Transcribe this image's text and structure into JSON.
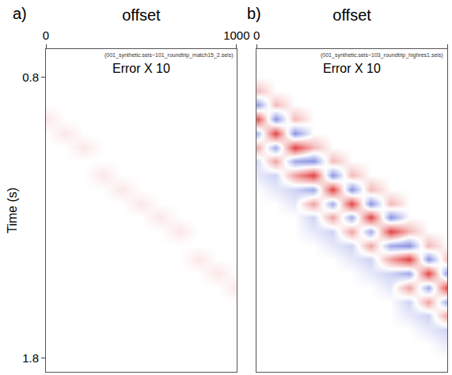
{
  "chart_data": [
    {
      "type": "heatmap",
      "label": "a)",
      "title": "Error X 10",
      "subtitle": "(001_synthetic.seis~101_roundtrip_match15_2.seis)",
      "x_label": "offset",
      "y_label": "Time (s)",
      "x": [
        0,
        100,
        200,
        300,
        400,
        500,
        600,
        700,
        800,
        900,
        1000
      ],
      "y": [
        0.8,
        0.85,
        0.9,
        0.95,
        1.0,
        1.05,
        1.1,
        1.15,
        1.2,
        1.25,
        1.3,
        1.35,
        1.4,
        1.45,
        1.5,
        1.55,
        1.6,
        1.65,
        1.7,
        1.75,
        1.8
      ],
      "cells": [
        [
          0,
          0,
          0,
          0,
          0,
          0,
          0,
          0,
          0,
          0,
          0
        ],
        [
          0,
          0,
          0,
          0,
          0,
          0,
          0,
          0,
          0,
          0,
          0
        ],
        [
          0,
          0,
          0,
          0,
          0,
          0,
          0,
          0,
          0,
          0,
          0
        ],
        [
          1,
          0,
          0,
          0,
          0,
          0,
          0,
          0,
          0,
          0,
          0
        ],
        [
          0,
          1,
          0,
          0,
          0,
          0,
          0,
          0,
          0,
          0,
          0
        ],
        [
          0,
          0,
          1,
          0,
          0,
          0,
          0,
          0,
          0,
          0,
          0
        ],
        [
          0,
          0,
          0,
          0,
          0,
          0,
          0,
          0,
          0,
          0,
          0
        ],
        [
          0,
          0,
          0,
          1,
          0,
          0,
          0,
          0,
          0,
          0,
          0
        ],
        [
          0,
          0,
          0,
          0,
          1,
          0,
          0,
          0,
          0,
          0,
          0
        ],
        [
          0,
          0,
          0,
          0,
          0,
          1,
          0,
          0,
          0,
          0,
          0
        ],
        [
          0,
          0,
          0,
          0,
          0,
          0,
          1,
          0,
          0,
          0,
          0
        ],
        [
          0,
          0,
          0,
          0,
          0,
          0,
          0,
          1,
          0,
          0,
          0
        ],
        [
          0,
          0,
          0,
          0,
          0,
          0,
          0,
          0,
          0,
          0,
          0
        ],
        [
          0,
          0,
          0,
          0,
          0,
          0,
          0,
          0,
          1,
          0,
          0
        ],
        [
          0,
          0,
          0,
          0,
          0,
          0,
          0,
          0,
          0,
          1,
          0
        ],
        [
          0,
          0,
          0,
          0,
          0,
          0,
          0,
          0,
          0,
          0,
          1
        ],
        [
          0,
          0,
          0,
          0,
          0,
          0,
          0,
          0,
          0,
          0,
          0
        ],
        [
          0,
          0,
          0,
          0,
          0,
          0,
          0,
          0,
          0,
          0,
          0
        ],
        [
          0,
          0,
          0,
          0,
          0,
          0,
          0,
          0,
          0,
          0,
          0
        ],
        [
          0,
          0,
          0,
          0,
          0,
          0,
          0,
          0,
          0,
          0,
          0
        ],
        [
          0,
          0,
          0,
          0,
          0,
          0,
          0,
          0,
          0,
          0,
          0
        ]
      ],
      "zlim": [
        -10,
        10
      ],
      "xlim": [
        0,
        1000
      ],
      "xticks": [
        0,
        1000
      ],
      "ylim": [
        0.7,
        1.85
      ],
      "yticks": [
        0.8,
        1.8
      ],
      "grid": false
    },
    {
      "type": "heatmap",
      "label": "b)",
      "title": "Error X 10",
      "subtitle": "(001_synthetic.seis~103_roundtrip_highres1.seis)",
      "x_label": "offset",
      "x": [
        0,
        100,
        200,
        300,
        400,
        500,
        600,
        700,
        800,
        900,
        1000
      ],
      "y": [
        0.8,
        0.85,
        0.9,
        0.95,
        1.0,
        1.05,
        1.1,
        1.15,
        1.2,
        1.25,
        1.3,
        1.35,
        1.4,
        1.45,
        1.5,
        1.55,
        1.6,
        1.65,
        1.7,
        1.75,
        1.8
      ],
      "cells": [
        [
          0,
          0,
          0,
          0,
          0,
          0,
          0,
          0,
          0,
          0,
          0
        ],
        [
          3,
          0,
          0,
          0,
          0,
          0,
          0,
          0,
          0,
          0,
          0
        ],
        [
          -5,
          3,
          0,
          0,
          0,
          0,
          0,
          0,
          0,
          0,
          0
        ],
        [
          8,
          -5,
          3,
          0,
          0,
          0,
          0,
          0,
          0,
          0,
          0
        ],
        [
          -4,
          8,
          -5,
          0,
          0,
          0,
          0,
          0,
          0,
          0,
          0
        ],
        [
          4,
          -4,
          8,
          3,
          0,
          0,
          0,
          0,
          0,
          0,
          0
        ],
        [
          -2,
          4,
          -4,
          -5,
          3,
          0,
          0,
          0,
          0,
          0,
          0
        ],
        [
          -1,
          -2,
          4,
          8,
          -5,
          3,
          0,
          0,
          0,
          0,
          0
        ],
        [
          0,
          -1,
          -2,
          -4,
          8,
          -5,
          3,
          0,
          0,
          0,
          0
        ],
        [
          0,
          0,
          -1,
          4,
          -4,
          8,
          -5,
          3,
          0,
          0,
          0
        ],
        [
          0,
          0,
          0,
          -2,
          4,
          -4,
          8,
          -5,
          0,
          0,
          0
        ],
        [
          0,
          0,
          0,
          -1,
          -2,
          4,
          -4,
          8,
          3,
          0,
          0
        ],
        [
          0,
          0,
          0,
          0,
          -1,
          -2,
          4,
          -4,
          -5,
          3,
          0
        ],
        [
          0,
          0,
          0,
          0,
          0,
          -1,
          -2,
          4,
          8,
          -5,
          3
        ],
        [
          0,
          0,
          0,
          0,
          0,
          0,
          -1,
          -2,
          -4,
          8,
          -5
        ],
        [
          0,
          0,
          0,
          0,
          0,
          0,
          0,
          -1,
          4,
          -4,
          8
        ],
        [
          0,
          0,
          0,
          0,
          0,
          0,
          0,
          0,
          -2,
          4,
          -4
        ],
        [
          0,
          0,
          0,
          0,
          0,
          0,
          0,
          0,
          -1,
          -2,
          4
        ],
        [
          0,
          0,
          0,
          0,
          0,
          0,
          0,
          0,
          0,
          -1,
          -2
        ],
        [
          0,
          0,
          0,
          0,
          0,
          0,
          0,
          0,
          0,
          0,
          -1
        ],
        [
          0,
          0,
          0,
          0,
          0,
          0,
          0,
          0,
          0,
          0,
          0
        ]
      ],
      "zlim": [
        -10,
        10
      ],
      "xlim": [
        0,
        1000
      ],
      "xticks": [
        0,
        1000
      ],
      "ylim": [
        0.7,
        1.85
      ],
      "yticks": [
        0.8,
        1.8
      ],
      "tick_labels": "x",
      "grid": false
    }
  ]
}
